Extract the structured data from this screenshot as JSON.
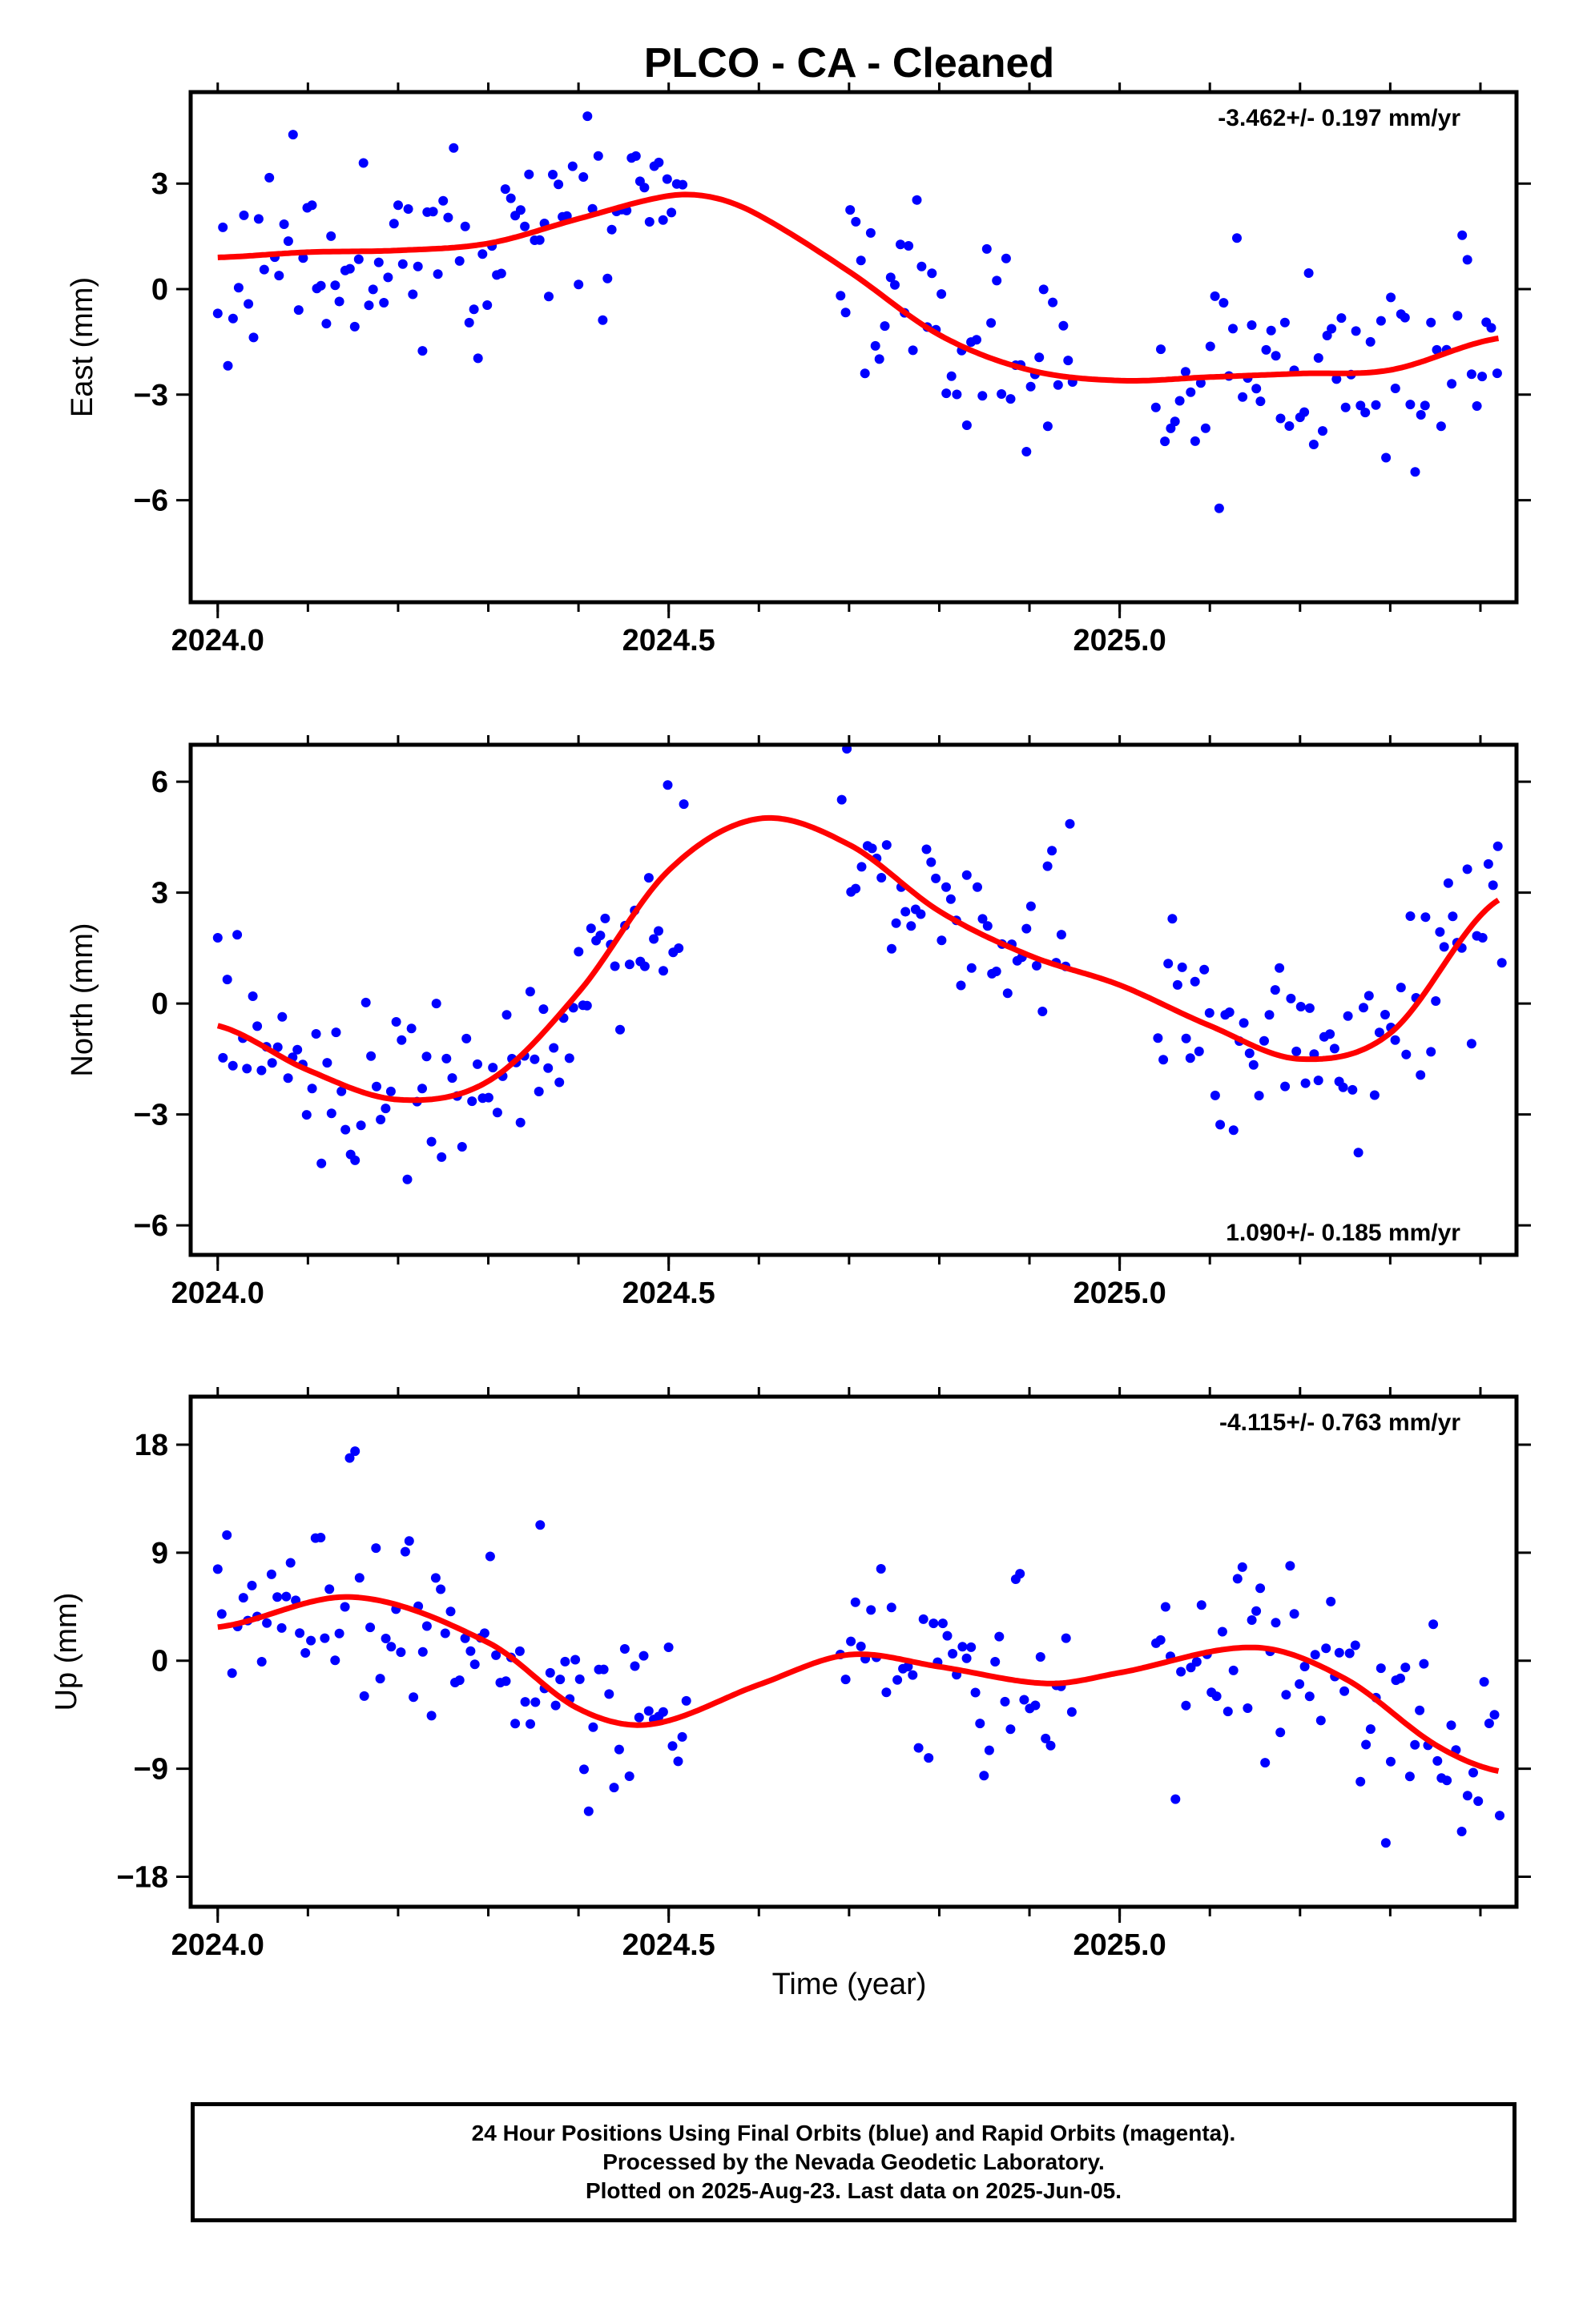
{
  "title": "PLCO  - CA - Cleaned",
  "xlabel": "Time (year)",
  "colors": {
    "points": "#0000ff",
    "fit": "#ff0000",
    "frame": "#000000"
  },
  "chart_data": [
    {
      "type": "scatter",
      "ylabel": "East (mm)",
      "rate": "-3.462+/- 0.197 mm/yr",
      "rate_position": "top-right",
      "xlim": [
        2023.97,
        2025.44
      ],
      "ylim": [
        -8.9,
        5.6
      ],
      "xticks": [
        2024.0,
        2024.5,
        2025.0
      ],
      "xtick_labels": [
        "2024.0",
        "2024.5",
        "2025.0"
      ],
      "yticks": [
        3,
        0,
        -3,
        -6
      ],
      "ytick_labels": [
        "3",
        "0",
        "−3",
        "−6"
      ],
      "fit_knots": {
        "x": [
          2024.0,
          2024.1,
          2024.2,
          2024.3,
          2024.4,
          2024.5,
          2024.55,
          2024.6,
          2024.7,
          2024.8,
          2024.9,
          2025.0,
          2025.1,
          2025.2,
          2025.3,
          2025.42
        ],
        "y": [
          0.9,
          1.05,
          1.1,
          1.3,
          2.0,
          2.65,
          2.6,
          2.1,
          0.5,
          -1.3,
          -2.3,
          -2.6,
          -2.5,
          -2.4,
          -2.3,
          -1.4
        ]
      },
      "points_seed": 11,
      "points_noise": 1.4
    },
    {
      "type": "scatter",
      "ylabel": "North (mm)",
      "rate": "1.090+/- 0.185 mm/yr",
      "rate_position": "bottom-right",
      "xlim": [
        2023.97,
        2025.44
      ],
      "ylim": [
        -6.8,
        7.0
      ],
      "xticks": [
        2024.0,
        2024.5,
        2025.0
      ],
      "xtick_labels": [
        "2024.0",
        "2024.5",
        "2025.0"
      ],
      "yticks": [
        6,
        3,
        0,
        -3,
        -6
      ],
      "ytick_labels": [
        "6",
        "3",
        "0",
        "−3",
        "−6"
      ],
      "fit_knots": {
        "x": [
          2024.0,
          2024.1,
          2024.2,
          2024.3,
          2024.4,
          2024.5,
          2024.6,
          2024.7,
          2024.8,
          2024.9,
          2025.0,
          2025.1,
          2025.2,
          2025.3,
          2025.42
        ],
        "y": [
          -0.6,
          -1.8,
          -2.6,
          -2.1,
          0.3,
          3.6,
          5.0,
          4.3,
          2.5,
          1.3,
          0.5,
          -0.6,
          -1.5,
          -0.8,
          2.8
        ]
      },
      "points_seed": 23,
      "points_noise": 1.2
    },
    {
      "type": "scatter",
      "ylabel": "Up (mm)",
      "rate": "-4.115+/- 0.763 mm/yr",
      "rate_position": "top-right",
      "xlim": [
        2023.97,
        2025.44
      ],
      "ylim": [
        -20.5,
        22.0
      ],
      "xticks": [
        2024.0,
        2024.5,
        2025.0
      ],
      "xtick_labels": [
        "2024.0",
        "2024.5",
        "2025.0"
      ],
      "yticks": [
        18,
        9,
        0,
        -9,
        -18
      ],
      "ytick_labels": [
        "18",
        "9",
        "0",
        "−9",
        "−18"
      ],
      "fit_knots": {
        "x": [
          2024.0,
          2024.15,
          2024.3,
          2024.4,
          2024.48,
          2024.6,
          2024.7,
          2024.8,
          2024.92,
          2025.0,
          2025.15,
          2025.25,
          2025.35,
          2025.42
        ],
        "y": [
          2.8,
          5.3,
          1.5,
          -4.0,
          -5.3,
          -2.0,
          0.5,
          -0.5,
          -1.9,
          -1.0,
          1.1,
          -1.5,
          -7.0,
          -9.2
        ]
      },
      "points_seed": 37,
      "points_noise": 4.2
    }
  ],
  "caption": {
    "line1": "24 Hour Positions Using Final Orbits (blue) and Rapid Orbits (magenta).",
    "line2": "Processed by the Nevada Geodetic Laboratory.",
    "line3": "Plotted on 2025-Aug-23. Last data on 2025-Jun-05."
  }
}
